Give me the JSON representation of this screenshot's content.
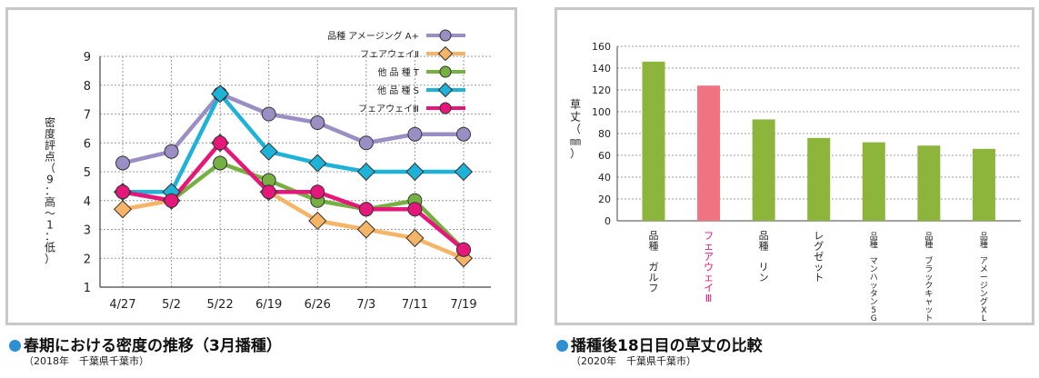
{
  "charts": {
    "left": {
      "caption": "春期における密度の推移（3月播種）",
      "subcaption": "（2018年　千葉県千葉市）"
    },
    "right": {
      "caption": "播種後18日目の草丈の比較",
      "subcaption": "（2020年　千葉県千葉市）"
    }
  },
  "chart_data": [
    {
      "type": "line",
      "title": "春期における密度の推移（3月播種）",
      "ylabel": "密度評点（9：高〜1：低）",
      "xlabel": "",
      "ylim": [
        1,
        9
      ],
      "yticks": [
        "1",
        "2",
        "3",
        "4",
        "5",
        "6",
        "7",
        "8",
        "9"
      ],
      "categories": [
        "4/27",
        "5/2",
        "5/22",
        "6/19",
        "6/26",
        "7/3",
        "7/11",
        "7/19"
      ],
      "grid": true,
      "legend": "top-right",
      "series": [
        {
          "name": "品種 アメージング A+",
          "color": "#9b8ec4",
          "marker": "circle",
          "values": [
            5.3,
            5.7,
            7.7,
            7.0,
            6.7,
            6.0,
            6.3,
            6.3
          ]
        },
        {
          "name": "フェアウェイⅡ",
          "color": "#f6b467",
          "marker": "diamond",
          "values": [
            3.7,
            4.0,
            6.0,
            4.3,
            3.3,
            3.0,
            2.7,
            2.0
          ]
        },
        {
          "name": "他 品 種 T",
          "color": "#76b043",
          "marker": "circle",
          "values": [
            4.3,
            4.0,
            5.3,
            4.7,
            4.0,
            3.7,
            4.0,
            2.3
          ]
        },
        {
          "name": "他 品 種 S",
          "color": "#1fb2d8",
          "marker": "diamond",
          "values": [
            4.3,
            4.3,
            7.7,
            5.7,
            5.3,
            5.0,
            5.0,
            5.0
          ]
        },
        {
          "name": "フェアウェイⅢ",
          "color": "#e5177a",
          "marker": "circle",
          "values": [
            4.3,
            4.0,
            6.0,
            4.3,
            4.3,
            3.7,
            3.7,
            2.3
          ]
        }
      ]
    },
    {
      "type": "bar",
      "title": "播種後18日目の草丈の比較",
      "ylabel": "草丈（㎜）",
      "xlabel": "",
      "ylim": [
        0,
        160
      ],
      "yticks": [
        "0",
        "20",
        "40",
        "60",
        "80",
        "100",
        "120",
        "140",
        "160"
      ],
      "grid": true,
      "categories": [
        "品種 ガルフ",
        "フェアウェイⅢ",
        "品種 リン",
        "レグゼット",
        "品種 マンハッタン5GLR",
        "品種 ブラックキャットⅡ",
        "品種 アメージングXL"
      ],
      "values": [
        146,
        124,
        93,
        76,
        72,
        69,
        66
      ],
      "colors": [
        "#8db53c",
        "#ef7380",
        "#8db53c",
        "#8db53c",
        "#8db53c",
        "#8db53c",
        "#8db53c"
      ],
      "label_colors": [
        "#222222",
        "#e5177a",
        "#222222",
        "#222222",
        "#222222",
        "#222222",
        "#222222"
      ]
    }
  ]
}
